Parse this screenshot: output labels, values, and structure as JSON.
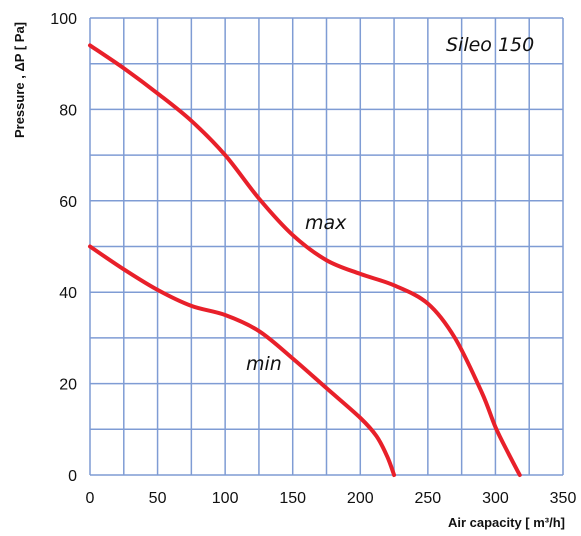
{
  "chart_data": {
    "type": "line",
    "title": "Sileo 150",
    "xlabel": "Air capacity  [  m³/h]",
    "ylabel": "Pressure , ΔP [ Pa]",
    "xlim": [
      0,
      350
    ],
    "ylim": [
      0,
      100
    ],
    "x_ticks": [
      "0",
      "50",
      "100",
      "150",
      "200",
      "250",
      "300",
      "350"
    ],
    "y_ticks": [
      "0",
      "20",
      "40",
      "60",
      "80",
      "100"
    ],
    "grid": true,
    "series": [
      {
        "name": "max",
        "color": "#e8202a",
        "x": [
          0,
          25,
          50,
          75,
          100,
          125,
          150,
          175,
          200,
          225,
          250,
          270,
          290,
          300,
          310,
          318
        ],
        "y": [
          94,
          89,
          83.5,
          77.5,
          70,
          60.5,
          52.5,
          47,
          44,
          41.5,
          37.5,
          30,
          18,
          10.5,
          4.5,
          0
        ]
      },
      {
        "name": "min",
        "color": "#e8202a",
        "x": [
          0,
          25,
          50,
          75,
          100,
          125,
          150,
          175,
          200,
          212,
          220,
          225
        ],
        "y": [
          50,
          45,
          40.5,
          37,
          35,
          31.5,
          25.5,
          19,
          12.5,
          8.5,
          4,
          0
        ]
      }
    ]
  }
}
